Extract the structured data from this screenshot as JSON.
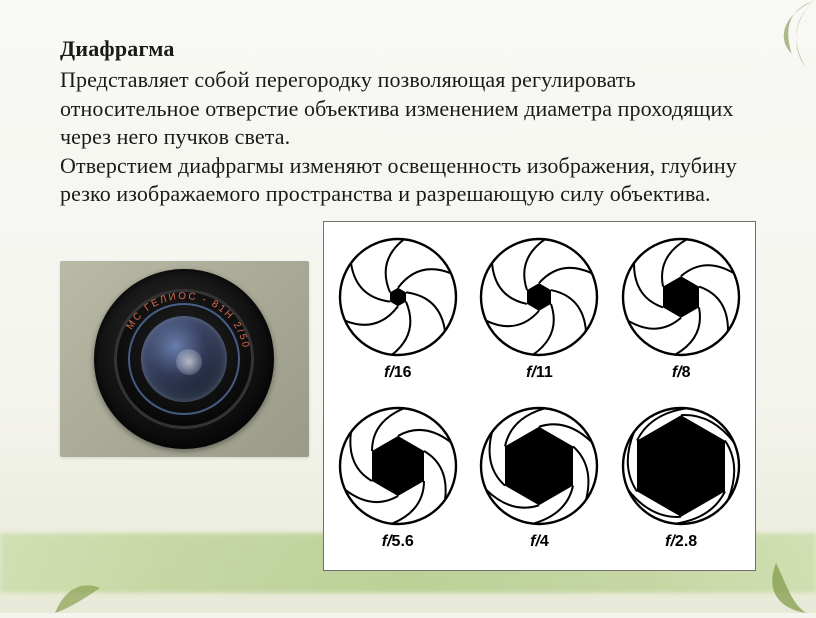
{
  "title": "Диафрагма",
  "paragraph1": "Представляет собой перегородку позволяющая регулировать относительное отверстие объектива изменением диаметра проходящих через него  пучков света.",
  "paragraph2": "Отверстием диафрагмы изменяют освещенность изображения, глубину резко изображаемого пространства и разрешающую силу объектива.",
  "apertures": [
    {
      "label_num": "16",
      "opening": 8
    },
    {
      "label_num": "11",
      "opening": 12
    },
    {
      "label_num": "8",
      "opening": 18
    },
    {
      "label_num": "5.6",
      "opening": 26
    },
    {
      "label_num": "4",
      "opening": 34
    },
    {
      "label_num": "2.8",
      "opening": 44
    }
  ],
  "style": {
    "circle_stroke": "#000000",
    "blade_stroke": "#000000",
    "blade_count": 6,
    "circle_radius": 58,
    "svg_size": 130
  }
}
